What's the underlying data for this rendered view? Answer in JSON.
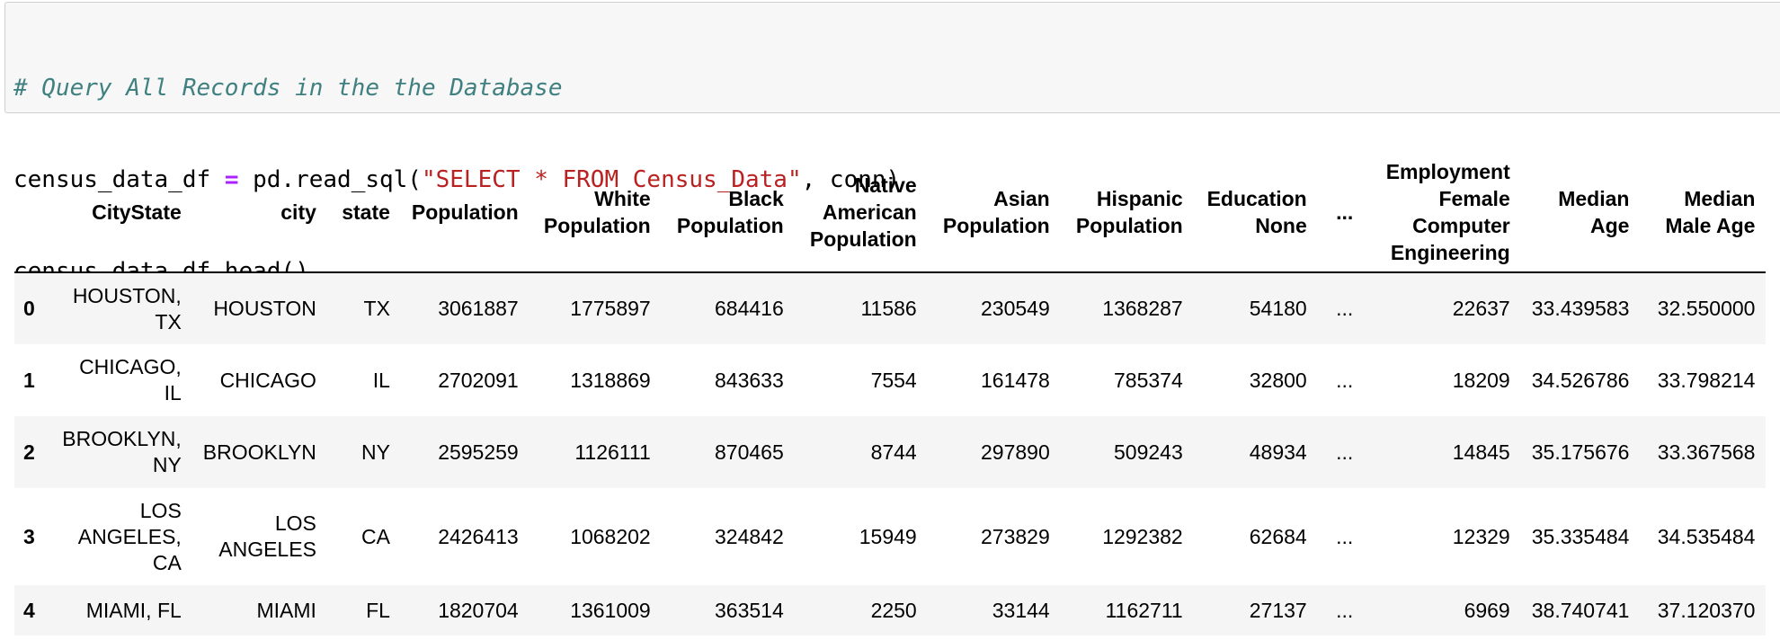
{
  "code": {
    "comment": "# Query All Records in the the Database",
    "line2_var": "census_data_df ",
    "line2_op": "=",
    "line2_call": " pd.read_sql(",
    "line2_str": "\"SELECT * FROM Census_Data\"",
    "line2_end": ", conn)",
    "line3": "census_data_df.head()"
  },
  "table": {
    "headers": {
      "index": "",
      "citystate": "CityState",
      "city": "city",
      "state": "state",
      "population": "Population",
      "white": "White Population",
      "black": "Black Population",
      "native": "Native American Population",
      "asian": "Asian Population",
      "hispanic": "Hispanic Population",
      "education_none": "Education None",
      "ellipsis": "...",
      "employment": "Employment Female Computer Engineering",
      "median_age": "Median Age",
      "median_male_age": "Median Male Age"
    },
    "rows": [
      {
        "index": "0",
        "citystate": "HOUSTON, TX",
        "city": "HOUSTON",
        "state": "TX",
        "population": "3061887",
        "white": "1775897",
        "black": "684416",
        "native": "11586",
        "asian": "230549",
        "hispanic": "1368287",
        "education_none": "54180",
        "ellipsis": "...",
        "employment": "22637",
        "median_age": "33.439583",
        "median_male_age": "32.550000"
      },
      {
        "index": "1",
        "citystate": "CHICAGO, IL",
        "city": "CHICAGO",
        "state": "IL",
        "population": "2702091",
        "white": "1318869",
        "black": "843633",
        "native": "7554",
        "asian": "161478",
        "hispanic": "785374",
        "education_none": "32800",
        "ellipsis": "...",
        "employment": "18209",
        "median_age": "34.526786",
        "median_male_age": "33.798214"
      },
      {
        "index": "2",
        "citystate": "BROOKLYN, NY",
        "city": "BROOKLYN",
        "state": "NY",
        "population": "2595259",
        "white": "1126111",
        "black": "870465",
        "native": "8744",
        "asian": "297890",
        "hispanic": "509243",
        "education_none": "48934",
        "ellipsis": "...",
        "employment": "14845",
        "median_age": "35.175676",
        "median_male_age": "33.367568"
      },
      {
        "index": "3",
        "citystate": "LOS ANGELES, CA",
        "city": "LOS ANGELES",
        "state": "CA",
        "population": "2426413",
        "white": "1068202",
        "black": "324842",
        "native": "15949",
        "asian": "273829",
        "hispanic": "1292382",
        "education_none": "62684",
        "ellipsis": "...",
        "employment": "12329",
        "median_age": "35.335484",
        "median_male_age": "34.535484"
      },
      {
        "index": "4",
        "citystate": "MIAMI, FL",
        "city": "MIAMI",
        "state": "FL",
        "population": "1820704",
        "white": "1361009",
        "black": "363514",
        "native": "2250",
        "asian": "33144",
        "hispanic": "1162711",
        "education_none": "27137",
        "ellipsis": "...",
        "employment": "6969",
        "median_age": "38.740741",
        "median_male_age": "37.120370"
      }
    ]
  },
  "colors": {
    "code_background": "#f7f7f7",
    "comment": "#408080",
    "operator": "#aa22ff",
    "string": "#ba2121",
    "row_stripe": "#f5f5f5"
  }
}
